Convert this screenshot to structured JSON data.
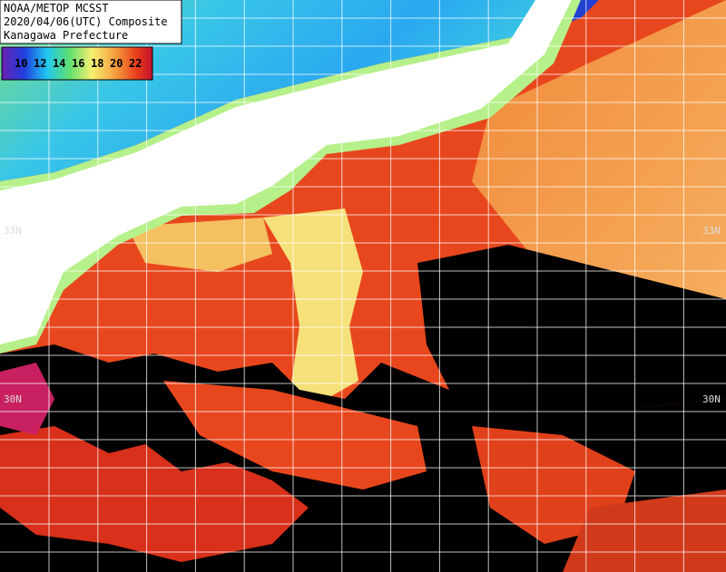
{
  "header": {
    "lines": [
      "NOAA/METOP MCSST",
      "2020/04/06(UTC) Composite",
      "Kanagawa Prefecture"
    ]
  },
  "colorbar": {
    "labels": [
      10,
      12,
      14,
      16,
      18,
      20,
      22
    ]
  },
  "latitude_labels": {
    "left": [
      "33N",
      "30N"
    ],
    "right": [
      "33N",
      "30N"
    ]
  }
}
